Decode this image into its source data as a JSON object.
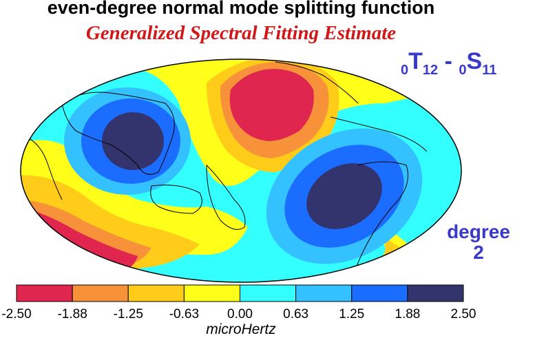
{
  "title": "even-degree normal mode splitting function",
  "subtitle": "Generalized Spectral Fitting Estimate",
  "mode": {
    "left_prefix": "0",
    "left_letter": "T",
    "left_sub": "12",
    "separator": " - ",
    "right_prefix": "0",
    "right_letter": "S",
    "right_sub": "11"
  },
  "degree": {
    "label": "degree",
    "value": "2"
  },
  "colorbar": {
    "ticks": [
      "-2.50",
      "-1.88",
      "-1.25",
      "-0.63",
      "0.00",
      "0.63",
      "1.25",
      "1.88",
      "2.50"
    ],
    "colors": [
      "#e0264e",
      "#f7913a",
      "#ffcc1a",
      "#ffff1a",
      "#33ffff",
      "#33c2ff",
      "#1a6dff",
      "#33336e"
    ],
    "unit": "microHertz"
  }
}
